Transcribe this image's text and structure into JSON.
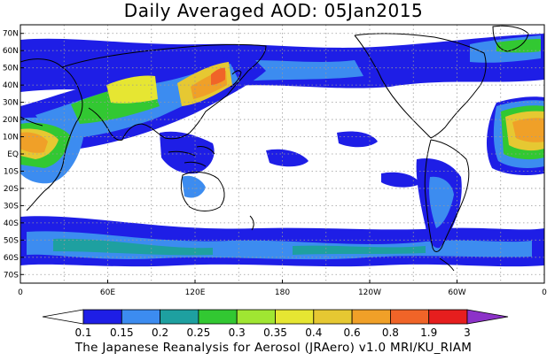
{
  "title": "Daily Averaged AOD: 05Jan2015",
  "credit": "The Japanese Reanalysis for Aerosol (JRAero) v1.0 MRI/KU_RIAM",
  "y_ticks": [
    "70N",
    "60N",
    "50N",
    "40N",
    "30N",
    "20N",
    "10N",
    "EQ",
    "10S",
    "20S",
    "30S",
    "40S",
    "50S",
    "60S",
    "70S"
  ],
  "x_ticks": [
    "0",
    "60E",
    "120E",
    "180",
    "120W",
    "60W",
    "0"
  ],
  "colorbar": {
    "labels": [
      "0.1",
      "0.15",
      "0.2",
      "0.25",
      "0.3",
      "0.35",
      "0.4",
      "0.6",
      "0.8",
      "1.9",
      "3"
    ],
    "colors": [
      "#ffffff",
      "#1e1ee6",
      "#3c8cf0",
      "#1ea0a0",
      "#32c832",
      "#a0e632",
      "#e6e632",
      "#e6c832",
      "#f0a028",
      "#f06428",
      "#e61e1e",
      "#8c32c8"
    ]
  },
  "map_extent": {
    "lon": [
      0,
      360
    ],
    "lat": [
      -75,
      75
    ]
  }
}
